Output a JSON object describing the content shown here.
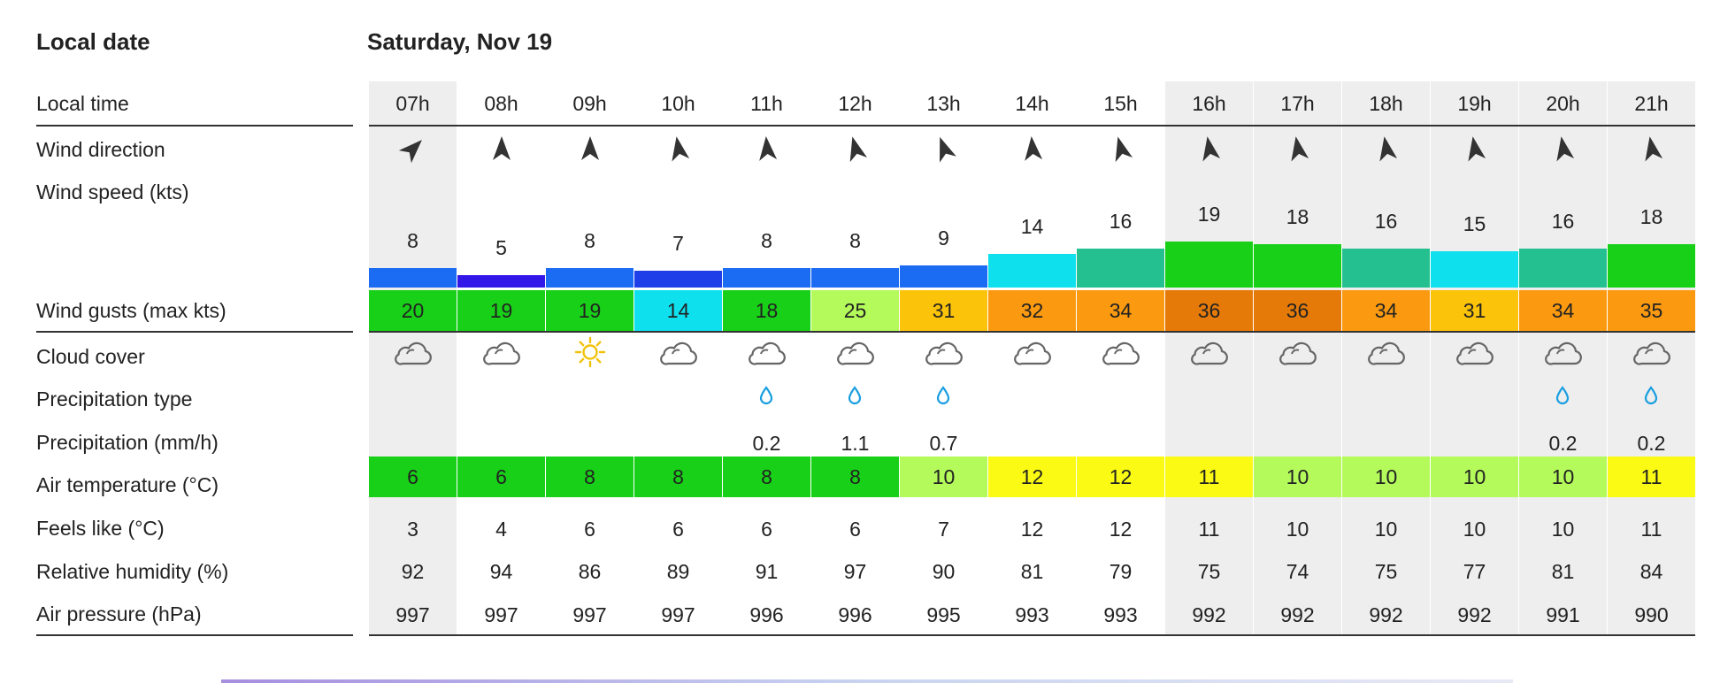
{
  "labels": {
    "local_date": "Local date",
    "local_time": "Local time",
    "wind_direction": "Wind direction",
    "wind_speed": "Wind speed  (kts)",
    "wind_gusts": "Wind gusts  (max kts)",
    "cloud_cover": "Cloud cover",
    "precip_type": "Precipitation type",
    "precipitation": "Precipitation  (mm/h)",
    "air_temp": "Air temperature  (°C)",
    "feels_like": "Feels like  (°C)",
    "humidity": "Relative humidity  (%)",
    "pressure": "Air pressure  (hPa)"
  },
  "date": "Saturday, Nov 19",
  "hours": [
    {
      "time": "07h",
      "shaded": true,
      "wind_dir_deg": 45,
      "wind_speed": "8",
      "speed_color": "#1b6cf2",
      "gust": "20",
      "gust_color": "#18d018",
      "cloud": "cloud-icon",
      "precip_type": "",
      "precip": "",
      "temp": "6",
      "temp_color": "#18d018",
      "feels": "3",
      "humidity": "92",
      "pressure": "997"
    },
    {
      "time": "08h",
      "shaded": false,
      "wind_dir_deg": 0,
      "wind_speed": "5",
      "speed_color": "#3218e8",
      "gust": "19",
      "gust_color": "#18d018",
      "cloud": "cloud-icon",
      "precip_type": "",
      "precip": "",
      "temp": "6",
      "temp_color": "#18d018",
      "feels": "4",
      "humidity": "94",
      "pressure": "997"
    },
    {
      "time": "09h",
      "shaded": false,
      "wind_dir_deg": 0,
      "wind_speed": "8",
      "speed_color": "#1b6cf2",
      "gust": "19",
      "gust_color": "#18d018",
      "cloud": "sun-icon",
      "precip_type": "",
      "precip": "",
      "temp": "8",
      "temp_color": "#18d018",
      "feels": "6",
      "humidity": "86",
      "pressure": "997"
    },
    {
      "time": "10h",
      "shaded": false,
      "wind_dir_deg": -10,
      "wind_speed": "7",
      "speed_color": "#1f3fe8",
      "gust": "14",
      "gust_color": "#0ee0ee",
      "cloud": "cloud-icon",
      "precip_type": "",
      "precip": "",
      "temp": "8",
      "temp_color": "#18d018",
      "feels": "6",
      "humidity": "89",
      "pressure": "997"
    },
    {
      "time": "11h",
      "shaded": false,
      "wind_dir_deg": -5,
      "wind_speed": "8",
      "speed_color": "#1b6cf2",
      "gust": "18",
      "gust_color": "#18d018",
      "cloud": "cloud-icon",
      "precip_type": "rain-drop-icon",
      "precip": "0.2",
      "temp": "8",
      "temp_color": "#18d018",
      "feels": "6",
      "humidity": "91",
      "pressure": "996"
    },
    {
      "time": "12h",
      "shaded": false,
      "wind_dir_deg": -15,
      "wind_speed": "8",
      "speed_color": "#1b6cf2",
      "gust": "25",
      "gust_color": "#b4fa5a",
      "cloud": "cloud-icon",
      "precip_type": "rain-drop-icon",
      "precip": "1.1",
      "temp": "8",
      "temp_color": "#18d018",
      "feels": "6",
      "humidity": "97",
      "pressure": "996"
    },
    {
      "time": "13h",
      "shaded": false,
      "wind_dir_deg": -20,
      "wind_speed": "9",
      "speed_color": "#1b6cf2",
      "gust": "31",
      "gust_color": "#fbc40a",
      "cloud": "cloud-icon",
      "precip_type": "rain-drop-icon",
      "precip": "0.7",
      "temp": "10",
      "temp_color": "#b4fa5a",
      "feels": "7",
      "humidity": "90",
      "pressure": "995"
    },
    {
      "time": "14h",
      "shaded": false,
      "wind_dir_deg": -5,
      "wind_speed": "14",
      "speed_color": "#0ee0ee",
      "gust": "32",
      "gust_color": "#fb9a10",
      "cloud": "cloud-icon",
      "precip_type": "",
      "precip": "",
      "temp": "12",
      "temp_color": "#fafa14",
      "feels": "12",
      "humidity": "81",
      "pressure": "993"
    },
    {
      "time": "15h",
      "shaded": false,
      "wind_dir_deg": -15,
      "wind_speed": "16",
      "speed_color": "#24c090",
      "gust": "34",
      "gust_color": "#fb9a10",
      "cloud": "cloud-icon",
      "precip_type": "",
      "precip": "",
      "temp": "12",
      "temp_color": "#fafa14",
      "feels": "12",
      "humidity": "79",
      "pressure": "993"
    },
    {
      "time": "16h",
      "shaded": true,
      "wind_dir_deg": -10,
      "wind_speed": "19",
      "speed_color": "#18d018",
      "gust": "36",
      "gust_color": "#e57a08",
      "cloud": "cloud-icon",
      "precip_type": "",
      "precip": "",
      "temp": "11",
      "temp_color": "#fafa14",
      "feels": "11",
      "humidity": "75",
      "pressure": "992"
    },
    {
      "time": "17h",
      "shaded": true,
      "wind_dir_deg": -10,
      "wind_speed": "18",
      "speed_color": "#18d018",
      "gust": "36",
      "gust_color": "#e57a08",
      "cloud": "cloud-icon",
      "precip_type": "",
      "precip": "",
      "temp": "10",
      "temp_color": "#b4fa5a",
      "feels": "10",
      "humidity": "74",
      "pressure": "992"
    },
    {
      "time": "18h",
      "shaded": true,
      "wind_dir_deg": -10,
      "wind_speed": "16",
      "speed_color": "#24c090",
      "gust": "34",
      "gust_color": "#fb9a10",
      "cloud": "cloud-icon",
      "precip_type": "",
      "precip": "",
      "temp": "10",
      "temp_color": "#b4fa5a",
      "feels": "10",
      "humidity": "75",
      "pressure": "992"
    },
    {
      "time": "19h",
      "shaded": true,
      "wind_dir_deg": -10,
      "wind_speed": "15",
      "speed_color": "#0ee0ee",
      "gust": "31",
      "gust_color": "#fbc40a",
      "cloud": "cloud-icon",
      "precip_type": "",
      "precip": "",
      "temp": "10",
      "temp_color": "#b4fa5a",
      "feels": "10",
      "humidity": "77",
      "pressure": "992"
    },
    {
      "time": "20h",
      "shaded": true,
      "wind_dir_deg": -10,
      "wind_speed": "16",
      "speed_color": "#24c090",
      "gust": "34",
      "gust_color": "#fb9a10",
      "cloud": "cloud-icon",
      "precip_type": "rain-drop-icon",
      "precip": "0.2",
      "temp": "10",
      "temp_color": "#b4fa5a",
      "feels": "10",
      "humidity": "81",
      "pressure": "991"
    },
    {
      "time": "21h",
      "shaded": true,
      "wind_dir_deg": -10,
      "wind_speed": "18",
      "speed_color": "#18d018",
      "gust": "35",
      "gust_color": "#fb9a10",
      "cloud": "cloud-icon",
      "precip_type": "rain-drop-icon",
      "precip": "0.2",
      "temp": "11",
      "temp_color": "#fafa14",
      "feels": "11",
      "humidity": "84",
      "pressure": "990"
    }
  ]
}
